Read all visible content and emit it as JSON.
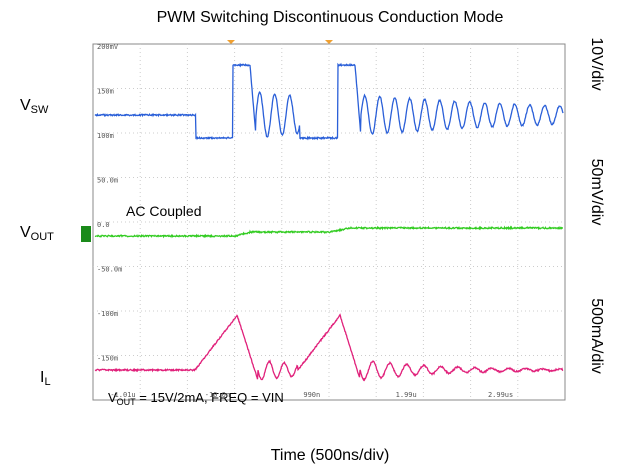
{
  "title": "PWM Switching Discontinuous Conduction Mode",
  "labels": {
    "vsw": {
      "main": "V",
      "sub": "SW"
    },
    "vout": {
      "main": "V",
      "sub": "OUT"
    },
    "il": {
      "main": "I",
      "sub": "L"
    }
  },
  "scales": [
    "10V/div",
    "50mV/div",
    "500mA/div"
  ],
  "annotations": {
    "ac": "AC Coupled",
    "cond": {
      "main": "V",
      "sub": "OUT",
      "rest": " = 15V/2mA, FREQ = VIN"
    }
  },
  "scope_y_labels": [
    "200mV",
    "150m",
    "100m",
    "50.0m",
    "0.0",
    "-50.0m",
    "-100m",
    "-150m"
  ],
  "scope_x_labels": [
    "-1.01u",
    "-10.0n",
    "990n",
    "1.99u",
    "2.99us"
  ],
  "x_axis_label": "Time (500ns/div)"
}
